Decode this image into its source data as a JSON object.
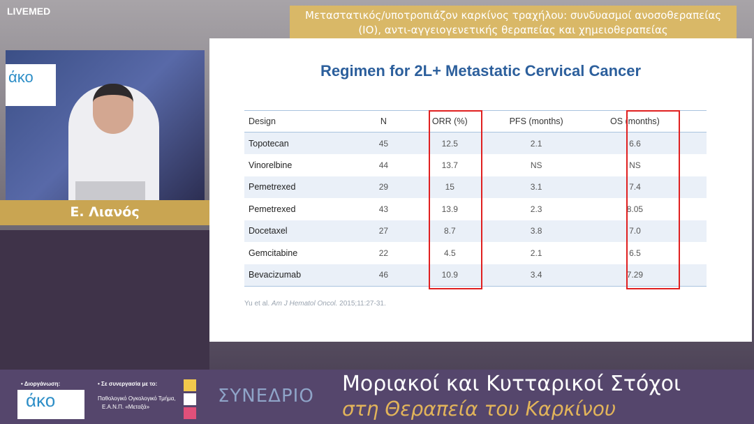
{
  "brand": "LIVEMED",
  "header": {
    "line1": "Μεταστατικός/υποτροπιάζον καρκίνος τραχήλου: συνδυασμοί ανοσοθεραπείας",
    "line2": "(ΙΟ), αντι-αγγειογενετικής θεραπείας  και χημειοθεραπείας"
  },
  "speaker": {
    "name": "Ε. Λιανός",
    "video_logo": "άκο"
  },
  "slide": {
    "title": "Regimen for 2L+ Metastatic Cervical Cancer",
    "columns": [
      "Design",
      "N",
      "ORR (%)",
      "PFS (months)",
      "OS (months)"
    ],
    "rows": [
      [
        "Topotecan",
        "45",
        "12.5",
        "2.1",
        "6.6"
      ],
      [
        "Vinorelbine",
        "44",
        "13.7",
        "NS",
        "NS"
      ],
      [
        "Pemetrexed",
        "29",
        "15",
        "3.1",
        "7.4"
      ],
      [
        "Pemetrexed",
        "43",
        "13.9",
        "2.3",
        "8.05"
      ],
      [
        "Docetaxel",
        "27",
        "8.7",
        "3.8",
        "7.0"
      ],
      [
        "Gemcitabine",
        "22",
        "4.5",
        "2.1",
        "6.5"
      ],
      [
        "Bevacizumab",
        "46",
        "10.9",
        "3.4",
        "7.29"
      ]
    ],
    "citation": {
      "authors": "Yu et al. ",
      "journal": "Am J Hematol Oncol.",
      "rest": " 2015;11:27-31."
    }
  },
  "footer": {
    "organizer_label": "• Διοργάνωση:",
    "organizer_logo": "άκο",
    "partner_label": "• Σε συνεργασία με το:",
    "partner_line1": "Παθολογικό Ογκολογικό Τμήμα,",
    "partner_line2": "Ε.Α.Ν.Π. «Μεταξά»",
    "syn": "ΣΥΝΕΔΡΙΟ",
    "title1": "Μοριακοί και Κυτταρικοί Στόχοι",
    "title2": "στη Θεραπεία του Καρκίνου"
  },
  "colors": {
    "highlight": "#e02020",
    "title_blue": "#2c5f9c",
    "gold": "#c9a552",
    "purple": "#55466c"
  }
}
